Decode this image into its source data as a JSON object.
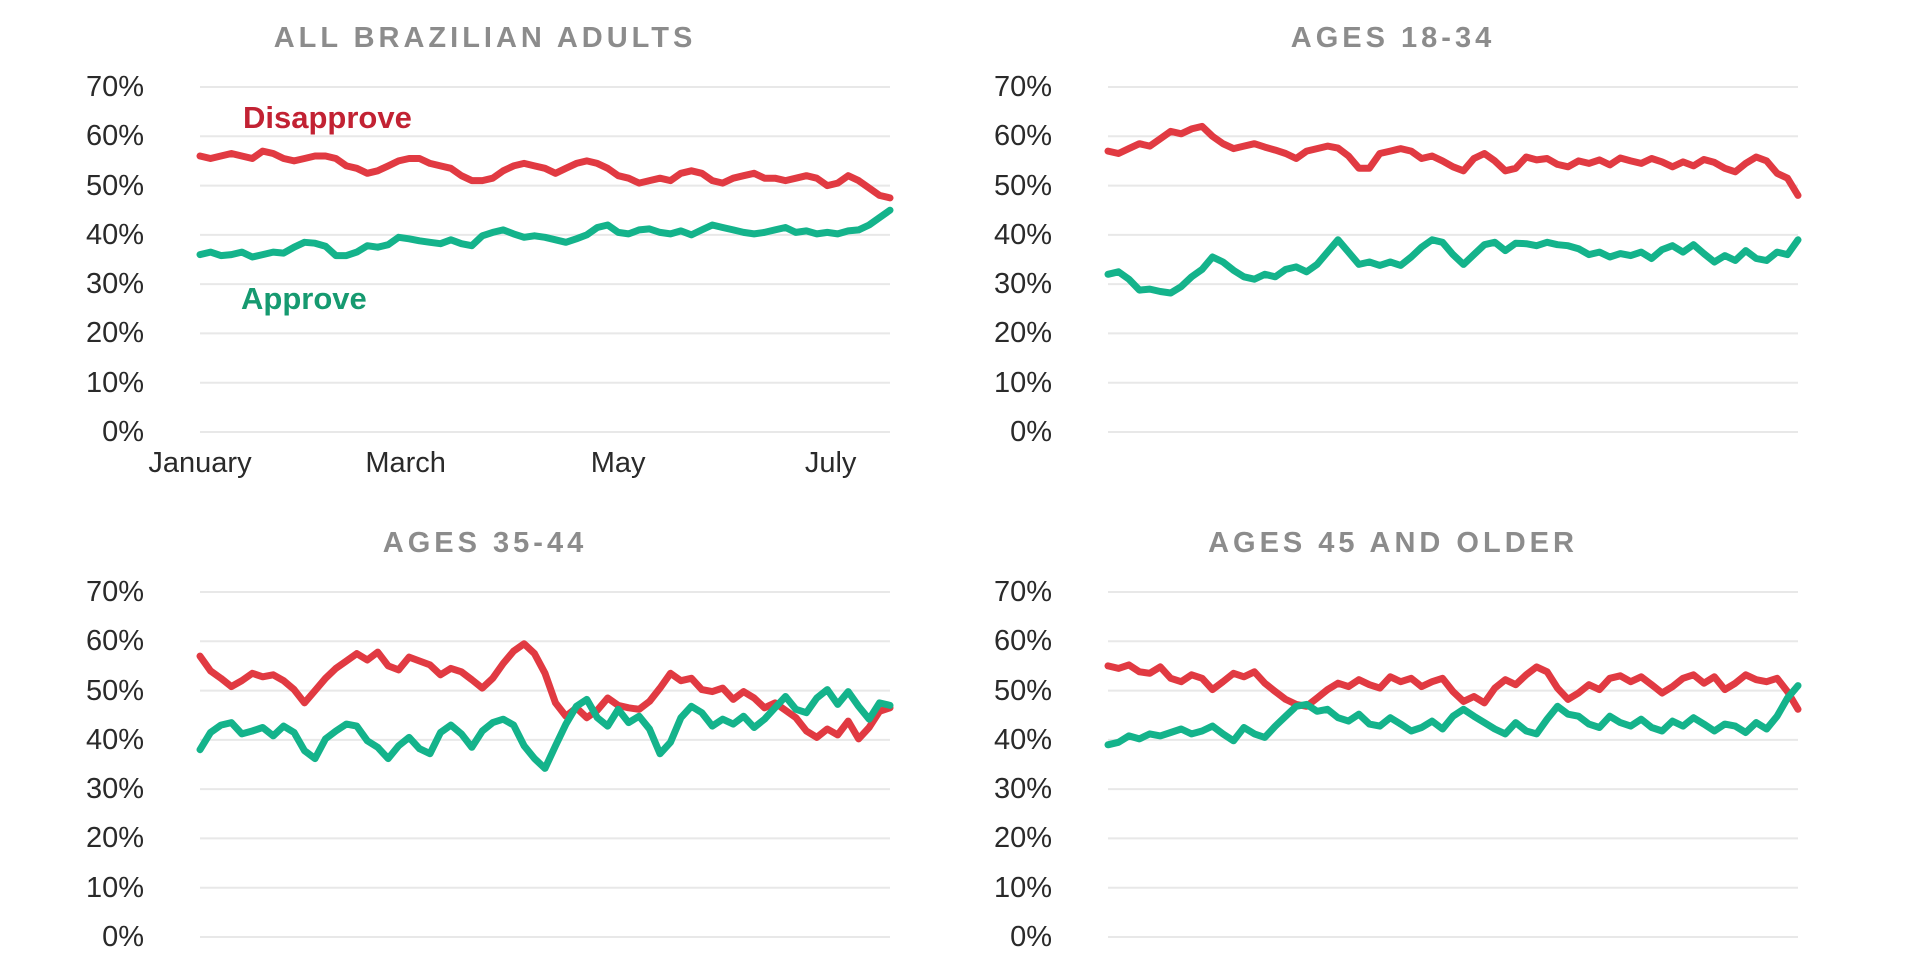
{
  "page": {
    "background": "#ffffff",
    "description_note": "Four small-multiple line charts of approval vs disapproval, split by age group"
  },
  "colors": {
    "disapprove_line": "#e13a42",
    "disapprove_label": "#c22233",
    "approve_line": "#14b38b",
    "approve_label": "#169a70",
    "panel_title": "#8c8c8c",
    "axis_text": "#2a2a2a",
    "gridline": "#e8e8e8"
  },
  "axis": {
    "y_ticks": [
      "70%",
      "60%",
      "50%",
      "40%",
      "30%",
      "20%",
      "10%",
      "0%"
    ],
    "y_max": 70,
    "y_min": 0
  },
  "chart_data": [
    {
      "type": "line",
      "title": "ALL BRAZILIAN ADULTS",
      "ylim": [
        0,
        70
      ],
      "y_unit": "%",
      "grid": "horizontal",
      "x_tick_labels": [
        "January",
        "March",
        "May",
        "July"
      ],
      "series_labels_shown": true,
      "series": [
        {
          "name": "Disapprove",
          "color": "#e13a42",
          "label_color": "#c22233",
          "values": [
            56,
            55.5,
            56,
            56.5,
            56,
            55.5,
            57,
            56.5,
            55.5,
            55,
            55.5,
            56,
            56,
            55.5,
            54,
            53.5,
            52.5,
            53,
            54,
            55,
            55.5,
            55.5,
            54.5,
            54,
            53.5,
            52,
            51,
            51,
            51.5,
            53,
            54,
            54.5,
            54,
            53.5,
            52.5,
            53.5,
            54.5,
            55,
            54.5,
            53.5,
            52,
            51.5,
            50.5,
            51,
            51.5,
            51,
            52.5,
            53,
            52.5,
            51,
            50.5,
            51.5,
            52,
            52.5,
            51.5,
            51.5,
            51,
            51.5,
            52,
            51.5,
            50,
            50.5,
            52,
            51,
            49.5,
            48,
            47.5
          ]
        },
        {
          "name": "Approve",
          "color": "#14b38b",
          "label_color": "#169a70",
          "values": [
            36,
            36.5,
            35.8,
            36,
            36.5,
            35.5,
            36,
            36.5,
            36.3,
            37.5,
            38.5,
            38.3,
            37.7,
            35.8,
            35.8,
            36.5,
            37.8,
            37.5,
            38,
            39.5,
            39.2,
            38.8,
            38.5,
            38.2,
            39,
            38.2,
            37.8,
            39.8,
            40.5,
            41,
            40.2,
            39.5,
            39.8,
            39.5,
            39,
            38.5,
            39.2,
            40,
            41.5,
            42,
            40.5,
            40.2,
            41,
            41.2,
            40.5,
            40.2,
            40.8,
            40,
            41,
            42,
            41.5,
            41,
            40.5,
            40.2,
            40.5,
            41,
            41.5,
            40.5,
            40.8,
            40.2,
            40.5,
            40.2,
            40.8,
            41,
            42,
            43.5,
            45
          ]
        }
      ]
    },
    {
      "type": "line",
      "title": "AGES 18-34",
      "ylim": [
        0,
        70
      ],
      "y_unit": "%",
      "grid": "horizontal",
      "x_tick_labels": [],
      "series_labels_shown": false,
      "series": [
        {
          "name": "Disapprove",
          "color": "#e13a42",
          "label_color": "#c22233",
          "values": [
            57,
            56.5,
            57.5,
            58.5,
            58,
            59.5,
            61,
            60.5,
            61.5,
            62,
            60,
            58.5,
            57.5,
            58,
            58.5,
            57.8,
            57.2,
            56.5,
            55.5,
            57,
            57.5,
            58,
            57.6,
            56,
            53.5,
            53.5,
            56.5,
            57,
            57.5,
            57,
            55.5,
            56,
            55,
            53.8,
            53,
            55.5,
            56.5,
            55,
            53,
            53.5,
            55.8,
            55.2,
            55.5,
            54.3,
            53.8,
            55,
            54.5,
            55.2,
            54.2,
            55.6,
            55,
            54.5,
            55.5,
            54.8,
            53.8,
            54.8,
            54,
            55.3,
            54.7,
            53.5,
            52.8,
            54.5,
            55.8,
            55,
            52.5,
            51.5,
            48
          ]
        },
        {
          "name": "Approve",
          "color": "#14b38b",
          "label_color": "#169a70",
          "values": [
            32,
            32.5,
            31,
            28.8,
            29,
            28.5,
            28.2,
            29.5,
            31.5,
            33,
            35.5,
            34.5,
            32.8,
            31.5,
            31,
            32,
            31.5,
            33,
            33.5,
            32.5,
            34,
            36.5,
            39,
            36.5,
            34,
            34.5,
            33.8,
            34.5,
            33.8,
            35.5,
            37.5,
            39,
            38.5,
            36,
            34,
            36,
            38,
            38.5,
            36.8,
            38.3,
            38.2,
            37.8,
            38.5,
            38,
            37.8,
            37.2,
            36,
            36.5,
            35.5,
            36.2,
            35.8,
            36.5,
            35.2,
            37,
            37.8,
            36.5,
            38,
            36.2,
            34.5,
            35.8,
            34.8,
            36.8,
            35.2,
            34.8,
            36.5,
            36,
            39
          ]
        }
      ]
    },
    {
      "type": "line",
      "title": "AGES 35-44",
      "ylim": [
        0,
        70
      ],
      "y_unit": "%",
      "grid": "horizontal",
      "x_tick_labels": [],
      "series_labels_shown": false,
      "series": [
        {
          "name": "Disapprove",
          "color": "#e13a42",
          "label_color": "#c22233",
          "values": [
            57,
            54,
            52.5,
            50.8,
            52,
            53.5,
            52.8,
            53.2,
            52,
            50.2,
            47.5,
            50,
            52.5,
            54.5,
            56,
            57.5,
            56.2,
            57.8,
            55,
            54.2,
            56.8,
            56,
            55.2,
            53.2,
            54.5,
            53.8,
            52.2,
            50.5,
            52.5,
            55.5,
            58,
            59.5,
            57.5,
            53.5,
            47.5,
            44.8,
            46.5,
            44.5,
            46,
            48.5,
            47,
            46.5,
            46.2,
            47.8,
            50.5,
            53.5,
            52,
            52.5,
            50.2,
            49.8,
            50.5,
            48.2,
            49.8,
            48.5,
            46.5,
            47.5,
            46,
            44.5,
            41.8,
            40.5,
            42.2,
            41,
            43.8,
            40.2,
            42.5,
            45.8,
            46.5
          ]
        },
        {
          "name": "Approve",
          "color": "#14b38b",
          "label_color": "#169a70",
          "values": [
            38,
            41.5,
            43,
            43.5,
            41.2,
            41.8,
            42.5,
            40.8,
            42.8,
            41.5,
            37.8,
            36.2,
            40.2,
            41.8,
            43.2,
            42.8,
            39.8,
            38.5,
            36.2,
            38.8,
            40.5,
            38.2,
            37.2,
            41.5,
            43,
            41.2,
            38.5,
            41.8,
            43.5,
            44.2,
            43,
            38.8,
            36.2,
            34.2,
            38.8,
            43.2,
            46.8,
            48.2,
            44.5,
            42.8,
            46.2,
            43.5,
            44.8,
            42.2,
            37.2,
            39.5,
            44.5,
            46.8,
            45.5,
            42.8,
            44.2,
            43.2,
            44.8,
            42.5,
            44.2,
            46.5,
            48.8,
            46.2,
            45.5,
            48.5,
            50.2,
            47.2,
            49.8,
            46.8,
            44.2,
            47.5,
            47
          ]
        }
      ]
    },
    {
      "type": "line",
      "title": "AGES 45 AND OLDER",
      "ylim": [
        0,
        70
      ],
      "y_unit": "%",
      "grid": "horizontal",
      "x_tick_labels": [],
      "series_labels_shown": false,
      "series": [
        {
          "name": "Disapprove",
          "color": "#e13a42",
          "label_color": "#c22233",
          "values": [
            55,
            54.5,
            55.2,
            53.8,
            53.5,
            54.8,
            52.5,
            51.8,
            53.2,
            52.5,
            50.2,
            51.8,
            53.5,
            52.8,
            53.8,
            51.5,
            49.8,
            48.2,
            47.2,
            46.8,
            48.5,
            50.2,
            51.5,
            50.8,
            52.2,
            51.2,
            50.5,
            52.8,
            51.8,
            52.5,
            50.8,
            51.8,
            52.5,
            49.8,
            47.8,
            48.8,
            47.5,
            50.5,
            52.2,
            51.2,
            53.2,
            54.8,
            53.8,
            50.5,
            48.2,
            49.5,
            51.2,
            50.2,
            52.5,
            53,
            51.8,
            52.8,
            51.2,
            49.5,
            50.8,
            52.5,
            53.2,
            51.5,
            52.8,
            50.2,
            51.5,
            53.2,
            52.2,
            51.8,
            52.5,
            49.8,
            46.2
          ]
        },
        {
          "name": "Approve",
          "color": "#14b38b",
          "label_color": "#169a70",
          "values": [
            39,
            39.5,
            40.8,
            40.2,
            41.2,
            40.8,
            41.5,
            42.2,
            41.2,
            41.8,
            42.8,
            41.2,
            39.8,
            42.5,
            41.2,
            40.5,
            42.8,
            44.8,
            46.8,
            47.2,
            45.8,
            46.2,
            44.5,
            43.8,
            45.2,
            43.2,
            42.8,
            44.5,
            43.2,
            41.8,
            42.5,
            43.8,
            42.2,
            44.8,
            46.2,
            44.8,
            43.5,
            42.2,
            41.2,
            43.5,
            41.8,
            41.2,
            44.2,
            46.8,
            45.2,
            44.8,
            43.2,
            42.5,
            44.8,
            43.5,
            42.8,
            44.2,
            42.5,
            41.8,
            43.8,
            42.8,
            44.5,
            43.2,
            41.8,
            43.2,
            42.8,
            41.5,
            43.5,
            42.2,
            44.8,
            48.5,
            51
          ]
        }
      ]
    }
  ]
}
